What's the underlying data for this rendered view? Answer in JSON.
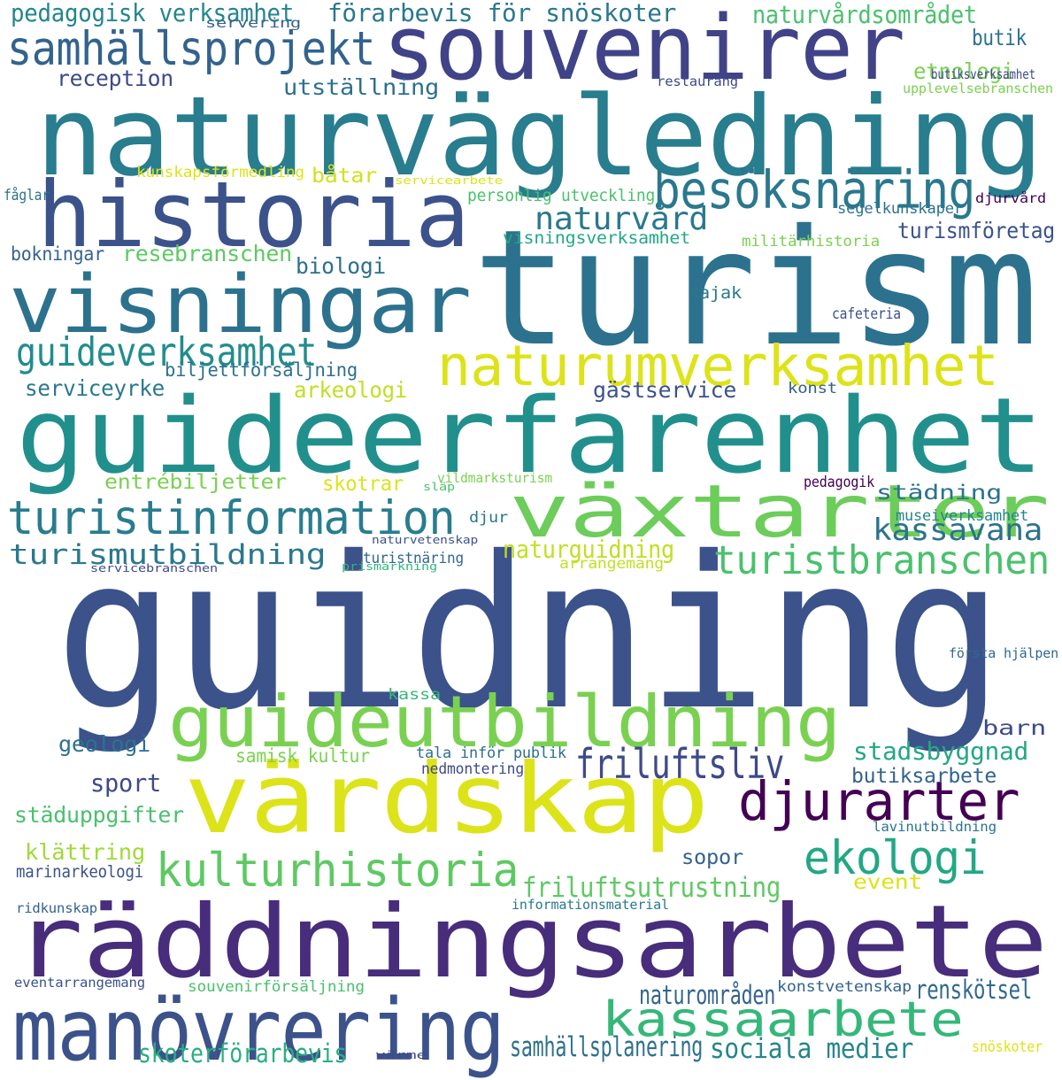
{
  "words": [
    {
      "text": "guidning",
      "color": "#3b528b"
    },
    {
      "text": "turism",
      "color": "#2c728e"
    },
    {
      "text": "naturvägledning",
      "color": "#287d8e"
    },
    {
      "text": "guideerfarenhet",
      "color": "#21908d"
    },
    {
      "text": "räddningsarbete",
      "color": "#472d7b"
    },
    {
      "text": "historia",
      "color": "#3b528b"
    },
    {
      "text": "souvenirer",
      "color": "#404387"
    },
    {
      "text": "visningar",
      "color": "#2c728e"
    },
    {
      "text": "värdskap",
      "color": "#dce319"
    },
    {
      "text": "guideutbildning",
      "color": "#7ad151"
    },
    {
      "text": "växtarter",
      "color": "#6ccd5a"
    },
    {
      "text": "manövrering",
      "color": "#3b528b"
    },
    {
      "text": "naturumverksamhet",
      "color": "#dde318"
    },
    {
      "text": "samhällsprojekt",
      "color": "#33638d"
    },
    {
      "text": "turistinformation",
      "color": "#287d8e"
    },
    {
      "text": "kulturhistoria",
      "color": "#5ec962"
    },
    {
      "text": "besöksnäring",
      "color": "#2a788e"
    },
    {
      "text": "djurarter",
      "color": "#440154"
    },
    {
      "text": "kassaarbete",
      "color": "#35b779"
    },
    {
      "text": "turistbranschen",
      "color": "#4ac16d"
    },
    {
      "text": "ekologi",
      "color": "#22a884"
    },
    {
      "text": "guideverksamhet",
      "color": "#228c8d"
    },
    {
      "text": "turismutbildning",
      "color": "#2a788e"
    },
    {
      "text": "friluftsliv",
      "color": "#3e4a89"
    },
    {
      "text": "naturvård",
      "color": "#2a788e"
    },
    {
      "text": "kassavana",
      "color": "#2c728e"
    },
    {
      "text": "naturområden",
      "color": "#33638d"
    },
    {
      "text": "friluftsutrustning",
      "color": "#5ec962"
    },
    {
      "text": "samhällsplanering",
      "color": "#2d708e"
    },
    {
      "text": "skoterförarbevis",
      "color": "#29af7f"
    },
    {
      "text": "sociala medier",
      "color": "#25858e"
    },
    {
      "text": "renskötsel",
      "color": "#31688e"
    },
    {
      "text": "pedagogisk verksamhet",
      "color": "#25858e"
    },
    {
      "text": "förarbevis för snöskoter",
      "color": "#2a788e"
    },
    {
      "text": "naturvårdsområdet",
      "color": "#4ac16d"
    },
    {
      "text": "utställning",
      "color": "#2d708e"
    },
    {
      "text": "reception",
      "color": "#3e4a89"
    },
    {
      "text": "butik",
      "color": "#2c728e"
    },
    {
      "text": "etnologi",
      "color": "#7ad151"
    },
    {
      "text": "resebranschen",
      "color": "#5ec962"
    },
    {
      "text": "biologi",
      "color": "#2d708e"
    },
    {
      "text": "arkeologi",
      "color": "#c2df23"
    },
    {
      "text": "gästservice",
      "color": "#3b528b"
    },
    {
      "text": "serviceyrke",
      "color": "#2a788e"
    },
    {
      "text": "entrébiljetter",
      "color": "#7ad151"
    },
    {
      "text": "skotrar",
      "color": "#dde318"
    },
    {
      "text": "städning",
      "color": "#2c728e"
    },
    {
      "text": "naturguidning",
      "color": "#c2df23"
    },
    {
      "text": "turismföretag",
      "color": "#3b528b"
    },
    {
      "text": "båtar",
      "color": "#d0e11c"
    },
    {
      "text": "stadsbyggnad",
      "color": "#22a884"
    },
    {
      "text": "butiksarbete",
      "color": "#33638d"
    },
    {
      "text": "geologi",
      "color": "#2c728e"
    },
    {
      "text": "samisk kultur",
      "color": "#7ad151"
    },
    {
      "text": "sport",
      "color": "#3e4a89"
    },
    {
      "text": "barn",
      "color": "#3e4a89"
    },
    {
      "text": "städuppgifter",
      "color": "#4ac16d"
    },
    {
      "text": "klättring",
      "color": "#a0da39"
    },
    {
      "text": "sopor",
      "color": "#33638d"
    },
    {
      "text": "event",
      "color": "#dde318"
    },
    {
      "text": "bokningar",
      "color": "#33638d"
    },
    {
      "text": "biljettförsäljning",
      "color": "#2d708e"
    },
    {
      "text": "visningsverksamhet",
      "color": "#22a884"
    },
    {
      "text": "personlig utveckling",
      "color": "#4ac16d"
    },
    {
      "text": "kunskapsförmedling",
      "color": "#dde318"
    },
    {
      "text": "segelkunskaper",
      "color": "#2c728e"
    },
    {
      "text": "militärhistoria",
      "color": "#7ad151"
    },
    {
      "text": "kajak",
      "color": "#2a788e"
    },
    {
      "text": "cafeteria",
      "color": "#3b528b"
    },
    {
      "text": "konst",
      "color": "#33638d"
    },
    {
      "text": "pedagogik",
      "color": "#440154"
    },
    {
      "text": "museiverksamhet",
      "color": "#25858e"
    },
    {
      "text": "turistnäring",
      "color": "#31688e"
    },
    {
      "text": "arrangemang",
      "color": "#c2df23"
    },
    {
      "text": "djur",
      "color": "#2a788e"
    },
    {
      "text": "kassa",
      "color": "#35b779"
    },
    {
      "text": "tala inför publik",
      "color": "#2d708e"
    },
    {
      "text": "nedmontering",
      "color": "#3e4a89"
    },
    {
      "text": "första hjälpen",
      "color": "#31688e"
    },
    {
      "text": "lavinutbildning",
      "color": "#2c728e"
    },
    {
      "text": "marinarkeologi",
      "color": "#3b528b"
    },
    {
      "text": "ridkunskap",
      "color": "#33638d"
    },
    {
      "text": "informationsmaterial",
      "color": "#2a788e"
    },
    {
      "text": "souvenirförsäljning",
      "color": "#4ac16d"
    },
    {
      "text": "eventarrangemang",
      "color": "#3b528b"
    },
    {
      "text": "konstvetenskap",
      "color": "#33638d"
    },
    {
      "text": "snöskoter",
      "color": "#dde318"
    },
    {
      "text": "värme",
      "color": "#3e4a89"
    },
    {
      "text": "servering",
      "color": "#33638d"
    },
    {
      "text": "restaurang",
      "color": "#3e4a89"
    },
    {
      "text": "butiksverksamhet",
      "color": "#3e4a89"
    },
    {
      "text": "upplevelsebranschen",
      "color": "#7ad151"
    },
    {
      "text": "djurvård",
      "color": "#440154"
    },
    {
      "text": "fåglar",
      "color": "#2c728e"
    },
    {
      "text": "servicearbete",
      "color": "#dde318"
    },
    {
      "text": "vildmarksturism",
      "color": "#7ad151"
    },
    {
      "text": "släp",
      "color": "#4ac16d"
    },
    {
      "text": "naturvetenskap",
      "color": "#3b528b"
    },
    {
      "text": "prismärkning",
      "color": "#35b779"
    },
    {
      "text": "servicebranschen",
      "color": "#3e4a89"
    }
  ]
}
